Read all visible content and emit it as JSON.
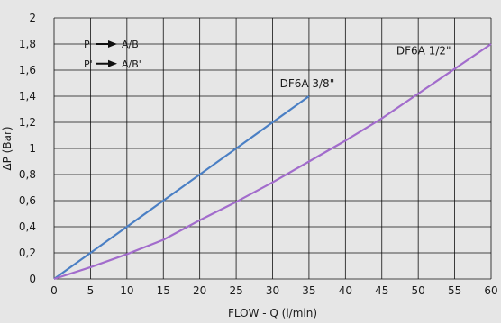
{
  "chart_data": {
    "type": "line",
    "title": "",
    "xlabel": "FLOW - Q (l/min)",
    "ylabel": "ΔP (Bar)",
    "xlim": [
      0,
      60
    ],
    "ylim": [
      0,
      2
    ],
    "x_ticks": [
      "0",
      "5",
      "10",
      "15",
      "20",
      "25",
      "30",
      "35",
      "40",
      "45",
      "50",
      "55",
      "60"
    ],
    "y_ticks": [
      "0",
      "0,2",
      "0,4",
      "0,6",
      "0,8",
      "1",
      "1,2",
      "1,4",
      "1,6",
      "1,8",
      "2"
    ],
    "grid": true,
    "legend": [
      {
        "from": "P",
        "to": "A/B"
      },
      {
        "from": "P'",
        "to": "A/B'"
      }
    ],
    "series": [
      {
        "name": "DF6A 3/8\"",
        "color": "#4a7fc4",
        "points": [
          [
            0,
            0
          ],
          [
            35,
            1.4
          ]
        ]
      },
      {
        "name": "DF6A 1/2\"",
        "color": "#a26ccc",
        "points": [
          [
            0,
            0
          ],
          [
            5,
            0.09
          ],
          [
            10,
            0.19
          ],
          [
            15,
            0.3
          ],
          [
            20,
            0.45
          ],
          [
            25,
            0.59
          ],
          [
            30,
            0.74
          ],
          [
            35,
            0.9
          ],
          [
            40,
            1.06
          ],
          [
            45,
            1.23
          ],
          [
            50,
            1.42
          ],
          [
            55,
            1.61
          ],
          [
            60,
            1.8
          ]
        ]
      }
    ]
  }
}
